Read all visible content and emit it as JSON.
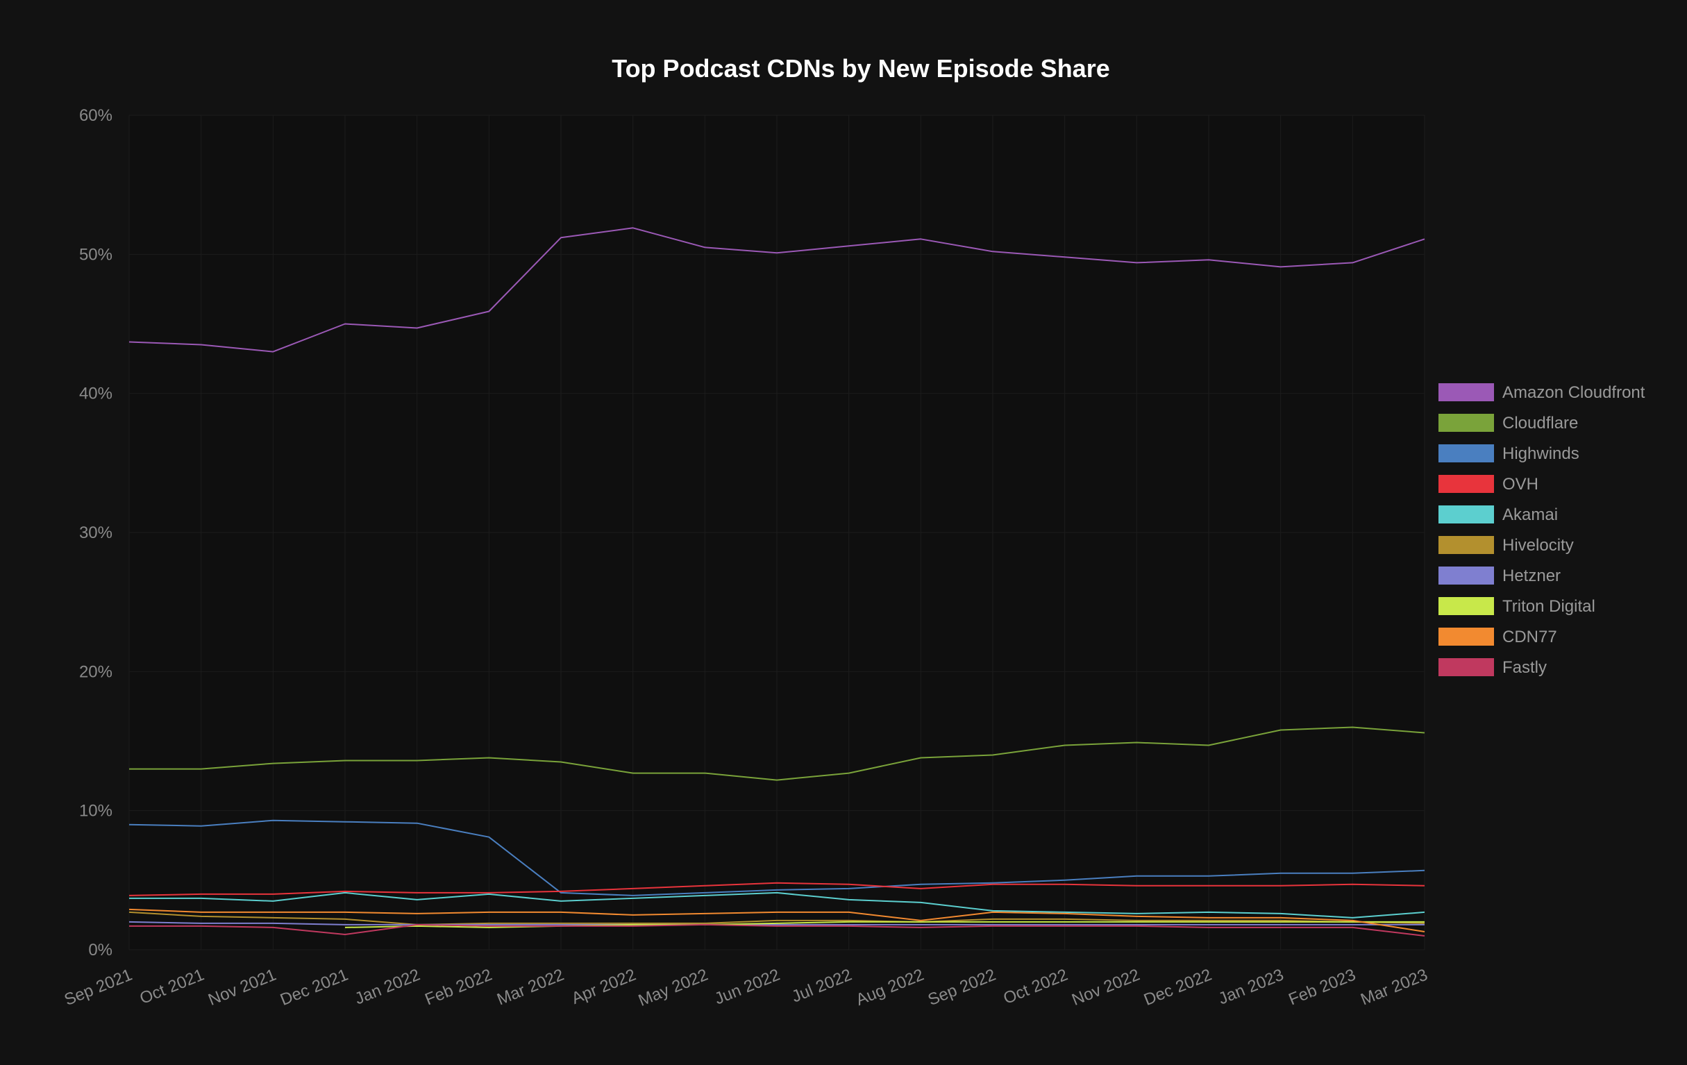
{
  "chart_data": {
    "type": "line",
    "title": "Top Podcast CDNs by New Episode Share",
    "xlabel": "",
    "ylabel": "",
    "ylim": [
      0,
      60
    ],
    "y_ticks": [
      "0%",
      "10%",
      "20%",
      "30%",
      "40%",
      "50%",
      "60%"
    ],
    "grid": true,
    "legend_position": "right",
    "categories": [
      "Sep 2021",
      "Oct 2021",
      "Nov 2021",
      "Dec 2021",
      "Jan 2022",
      "Feb 2022",
      "Mar 2022",
      "Apr 2022",
      "May 2022",
      "Jun 2022",
      "Jul 2022",
      "Aug 2022",
      "Sep 2022",
      "Oct 2022",
      "Nov 2022",
      "Dec 2022",
      "Jan 2023",
      "Feb 2023",
      "Mar 2023"
    ],
    "series": [
      {
        "name": "Amazon Cloudfront",
        "color": "#9b59b6",
        "values": [
          43.7,
          43.5,
          43.0,
          45.0,
          44.7,
          45.9,
          51.2,
          51.9,
          50.5,
          50.1,
          50.6,
          51.1,
          50.2,
          49.8,
          49.4,
          49.6,
          49.1,
          49.4,
          51.1
        ]
      },
      {
        "name": "Cloudflare",
        "color": "#7aa33a",
        "values": [
          13.0,
          13.0,
          13.4,
          13.6,
          13.6,
          13.8,
          13.5,
          12.7,
          12.7,
          12.2,
          12.7,
          13.8,
          14.0,
          14.7,
          14.9,
          14.7,
          15.8,
          16.0,
          15.6
        ]
      },
      {
        "name": "Highwinds",
        "color": "#4a7fc0",
        "values": [
          9.0,
          8.9,
          9.3,
          9.2,
          9.1,
          8.1,
          4.1,
          3.9,
          4.1,
          4.3,
          4.4,
          4.7,
          4.8,
          5.0,
          5.3,
          5.3,
          5.5,
          5.5,
          5.7
        ]
      },
      {
        "name": "OVH",
        "color": "#e8343c",
        "values": [
          3.9,
          4.0,
          4.0,
          4.2,
          4.1,
          4.1,
          4.2,
          4.4,
          4.6,
          4.8,
          4.7,
          4.4,
          4.7,
          4.7,
          4.6,
          4.6,
          4.6,
          4.7,
          4.6
        ]
      },
      {
        "name": "Akamai",
        "color": "#5ccfcf",
        "values": [
          3.7,
          3.7,
          3.5,
          4.1,
          3.6,
          4.0,
          3.5,
          3.7,
          3.9,
          4.1,
          3.6,
          3.4,
          2.8,
          2.7,
          2.6,
          2.7,
          2.6,
          2.3,
          2.7
        ]
      },
      {
        "name": "Hivelocity",
        "color": "#b3902e",
        "values": [
          2.7,
          2.4,
          2.3,
          2.2,
          1.8,
          1.9,
          1.9,
          1.9,
          1.9,
          2.1,
          2.1,
          2.0,
          2.2,
          2.2,
          2.1,
          2.1,
          2.1,
          2.0,
          1.9
        ]
      },
      {
        "name": "Hetzner",
        "color": "#7f7fd0",
        "values": [
          2.0,
          1.9,
          1.9,
          1.8,
          1.8,
          1.8,
          1.8,
          1.8,
          1.8,
          1.8,
          1.8,
          1.8,
          1.8,
          1.8,
          1.8,
          1.8,
          1.8,
          1.8,
          1.8
        ]
      },
      {
        "name": "Triton Digital",
        "color": "#c8e84a",
        "values": [
          null,
          null,
          null,
          1.6,
          1.7,
          1.6,
          1.7,
          1.8,
          1.8,
          1.9,
          2.0,
          2.0,
          2.0,
          2.0,
          2.0,
          2.0,
          2.0,
          2.0,
          2.0
        ]
      },
      {
        "name": "CDN77",
        "color": "#f28a30",
        "values": [
          2.9,
          2.7,
          2.7,
          2.7,
          2.6,
          2.7,
          2.7,
          2.5,
          2.6,
          2.7,
          2.7,
          2.1,
          2.7,
          2.6,
          2.4,
          2.3,
          2.3,
          2.1,
          1.3
        ]
      },
      {
        "name": "Fastly",
        "color": "#c0395f",
        "values": [
          1.7,
          1.7,
          1.6,
          1.1,
          1.8,
          1.7,
          1.7,
          1.7,
          1.8,
          1.7,
          1.7,
          1.6,
          1.7,
          1.7,
          1.7,
          1.6,
          1.6,
          1.6,
          1.0
        ]
      }
    ]
  }
}
